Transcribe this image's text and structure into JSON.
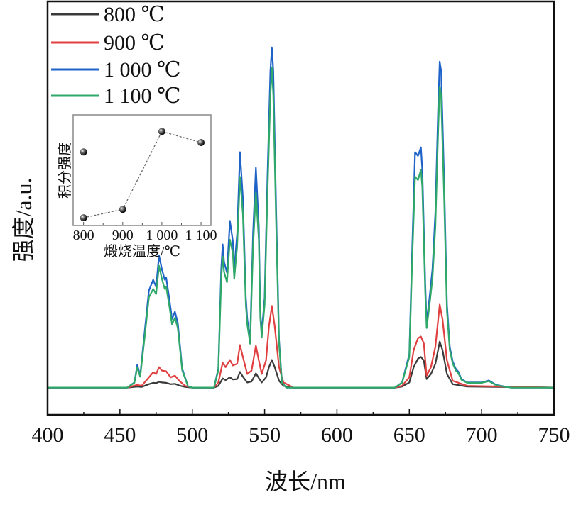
{
  "chart_data": {
    "type": "line",
    "xlabel": "波长/nm",
    "ylabel": "强度/a.u.",
    "xlim": [
      400,
      750
    ],
    "ylim": [
      -8,
      113.5
    ],
    "xticks": [
      "400",
      "450",
      "500",
      "550",
      "600",
      "650",
      "700",
      "750"
    ],
    "grid": false,
    "legend_position": "top-left",
    "series": [
      {
        "name": "800 ℃",
        "color": "#3a3a3a",
        "x": [
          400,
          455,
          462,
          465,
          470,
          473,
          475,
          477,
          479,
          482,
          485,
          488,
          491,
          495,
          500,
          515,
          518,
          521,
          523,
          526,
          528,
          531,
          533,
          535,
          538,
          541,
          544,
          546,
          548,
          551,
          553,
          555,
          557,
          560,
          563,
          570,
          640,
          645,
          650,
          653,
          656,
          658,
          660,
          662,
          665,
          668,
          671,
          673,
          676,
          680,
          690,
          750
        ],
        "y": [
          0,
          0,
          0.3,
          0.2,
          1,
          1.4,
          1.3,
          1.7,
          1.5,
          1.4,
          1,
          1.1,
          0.6,
          0.2,
          0,
          0,
          0.5,
          2.7,
          2.2,
          3,
          2.4,
          2.5,
          4.6,
          3.2,
          1.5,
          1.8,
          4.2,
          2.8,
          1.5,
          3,
          6,
          8.1,
          6,
          2,
          0.5,
          0,
          0,
          0.3,
          1.5,
          6,
          8.5,
          9,
          8,
          2.5,
          4,
          7,
          13.5,
          11,
          4,
          1,
          0.3,
          0
        ]
      },
      {
        "name": "900 ℃",
        "color": "#e04040",
        "x": [
          400,
          455,
          462,
          465,
          470,
          473,
          475,
          477,
          479,
          482,
          485,
          488,
          491,
          495,
          500,
          515,
          518,
          521,
          523,
          526,
          528,
          531,
          533,
          535,
          538,
          541,
          544,
          546,
          548,
          551,
          553,
          555,
          557,
          560,
          563,
          570,
          640,
          645,
          650,
          653,
          656,
          658,
          660,
          662,
          665,
          668,
          671,
          673,
          676,
          680,
          690,
          750
        ],
        "y": [
          0,
          0,
          0.8,
          0.5,
          3,
          4.5,
          4,
          6,
          5,
          4.8,
          3,
          3.5,
          2,
          0.5,
          0,
          0,
          1.5,
          7.3,
          6,
          8.1,
          6.5,
          7,
          12.5,
          9,
          4,
          5,
          12.3,
          8,
          4,
          8,
          18,
          24,
          18,
          6,
          1.5,
          0,
          0,
          0.5,
          3,
          11,
          14.5,
          15,
          13,
          3.5,
          6,
          12,
          24.4,
          20,
          8,
          2,
          0.5,
          0
        ]
      },
      {
        "name": "1 000 ℃",
        "color": "#1f63c8",
        "x": [
          400,
          455,
          460,
          462,
          464,
          467,
          470,
          473,
          475,
          477,
          479,
          481,
          482,
          484,
          486,
          488,
          490,
          493,
          497,
          500,
          515,
          518,
          520,
          521,
          522,
          524,
          526,
          528,
          529,
          531,
          533,
          535,
          537,
          538,
          540,
          542,
          544,
          546,
          547,
          548,
          550,
          552,
          554,
          555,
          556,
          558,
          560,
          562,
          565,
          640,
          645,
          650,
          652,
          654,
          656,
          658,
          659,
          661,
          662,
          664,
          666,
          668,
          670,
          671,
          672,
          674,
          676,
          678,
          680,
          682,
          684,
          686,
          690,
          700,
          705,
          710,
          720,
          750
        ],
        "y": [
          0,
          0,
          1.5,
          6.7,
          3.5,
          16,
          28.5,
          31.7,
          29.6,
          38.8,
          34.8,
          31.7,
          32.3,
          26.5,
          20.2,
          22.3,
          19,
          5.6,
          0.4,
          0,
          0,
          5.6,
          34.8,
          42.1,
          36.9,
          33.8,
          49,
          43.1,
          34.8,
          45.2,
          69.2,
          55.6,
          26.5,
          20.2,
          14,
          45.2,
          64.6,
          47.3,
          22.3,
          16,
          26.5,
          61.9,
          93.1,
          100,
          93.1,
          51.5,
          14,
          1.5,
          0,
          0,
          1.5,
          9.8,
          41,
          69.2,
          68.1,
          70.6,
          64,
          30.6,
          19,
          26.5,
          34.8,
          51.5,
          82.7,
          95.8,
          93.1,
          61.9,
          24.4,
          11.9,
          7.7,
          5.6,
          4.6,
          2.5,
          1.5,
          1.5,
          2.1,
          0.8,
          0,
          0
        ]
      },
      {
        "name": "1 100 ℃",
        "color": "#2fa86a",
        "x": [
          400,
          455,
          460,
          462,
          464,
          467,
          470,
          473,
          475,
          477,
          479,
          481,
          482,
          484,
          486,
          488,
          490,
          493,
          497,
          500,
          515,
          518,
          520,
          521,
          522,
          524,
          526,
          528,
          529,
          531,
          533,
          535,
          537,
          538,
          540,
          542,
          544,
          546,
          547,
          548,
          550,
          552,
          554,
          555,
          556,
          558,
          560,
          562,
          565,
          640,
          645,
          650,
          652,
          654,
          656,
          658,
          659,
          661,
          662,
          664,
          666,
          668,
          670,
          671,
          672,
          674,
          676,
          678,
          680,
          682,
          684,
          686,
          690,
          700,
          705,
          710,
          720,
          750
        ],
        "y": [
          0,
          0,
          1.4,
          6,
          3.2,
          14.5,
          26.5,
          29,
          27.5,
          35.8,
          32,
          29,
          29.6,
          24.4,
          18.6,
          20.5,
          17.5,
          5.1,
          0.4,
          0,
          0,
          5.1,
          32,
          38.5,
          34,
          31,
          43.5,
          39.6,
          32,
          41.5,
          61.9,
          51,
          24.4,
          18.6,
          12.9,
          41.5,
          57.3,
          43.5,
          20.5,
          14.7,
          24.4,
          57,
          86,
          94,
          86,
          47.4,
          12.9,
          1.4,
          0,
          0,
          1.4,
          9,
          37.7,
          62,
          61,
          64,
          58.9,
          28,
          17.5,
          24.4,
          32,
          47.4,
          76,
          88.5,
          85.6,
          57,
          22.4,
          11,
          7.1,
          5.1,
          4.2,
          2.3,
          1.4,
          1.4,
          1.9,
          0.7,
          0,
          0
        ]
      }
    ],
    "inset": {
      "type": "scatter-line",
      "xlabel": "煅烧温度/℃",
      "ylabel": "积分强度",
      "xlim": [
        773.4,
        1125.3
      ],
      "ylim": [
        0,
        10
      ],
      "xticks": [
        "800",
        "900",
        "1 000",
        "1 100"
      ],
      "xtick_values": [
        800,
        900,
        1000,
        1100
      ],
      "points": [
        {
          "x": 800,
          "y": 0.7
        },
        {
          "x": 900,
          "y": 1.46
        },
        {
          "x": 1000,
          "y": 8.5
        },
        {
          "x": 1100,
          "y": 7.5
        }
      ],
      "extra_point": {
        "x": 800,
        "y": 6.65
      }
    }
  }
}
